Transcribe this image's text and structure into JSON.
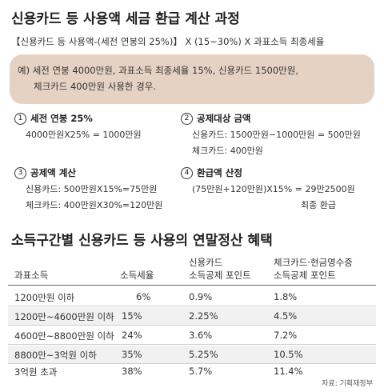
{
  "title": "신용카드 등 사용액 세금 환급 계산 과정",
  "formula": "【신용카드 등 사용액-(세전 연봉의 25%)】 X (15~30%) X 과표소득 최종세율",
  "example": {
    "line1": "예) 세전 연봉 4000만원, 과표소득 최종세율 15%, 신용카드 1500만원,",
    "line2": "체크카드 400만원 사용한 경우."
  },
  "steps": [
    {
      "num": "1",
      "title": "세전 연봉 25%",
      "lines": [
        "4000만원X25% = 1000만원"
      ]
    },
    {
      "num": "2",
      "title": "공제대상 금액",
      "lines": [
        "신용카드: 1500만원−1000만원 = 500만원",
        "체크카드: 400만원"
      ]
    },
    {
      "num": "3",
      "title": "공제액 계산",
      "lines": [
        "신용카드: 500만원X15%=75만원",
        "체크카드: 400만원X30%=120만원"
      ]
    },
    {
      "num": "4",
      "title": "환급액 산정",
      "lines": [
        "(75만원+120만원)X15% = 29만2500원",
        "최종 환급"
      ]
    }
  ],
  "table_title": "소득구간별 신용카드 등 사용의 연말정산 혜택",
  "table": {
    "headers": {
      "col1": "과표소득",
      "col2": "소득세율",
      "col3_l1": "신용카드",
      "col3_l2": "소득공제 포인트",
      "col4_l1": "체크카드·현금영수증",
      "col4_l2": "소득공제 포인트"
    },
    "rows": [
      [
        "1200만원 이하",
        "6%",
        "0.9%",
        "1.8%"
      ],
      [
        "1200만~4600만원 이하",
        "15%",
        "2.25%",
        "4.5%"
      ],
      [
        "4600만~8800만원 이하",
        "24%",
        "3.6%",
        "7.2%"
      ],
      [
        "8800만~3억원 이하",
        "35%",
        "5.25%",
        "10.5%"
      ],
      [
        "3억원 초과",
        "38%",
        "5.7%",
        "11.4%"
      ]
    ]
  },
  "source": "자료: 기획재정부"
}
